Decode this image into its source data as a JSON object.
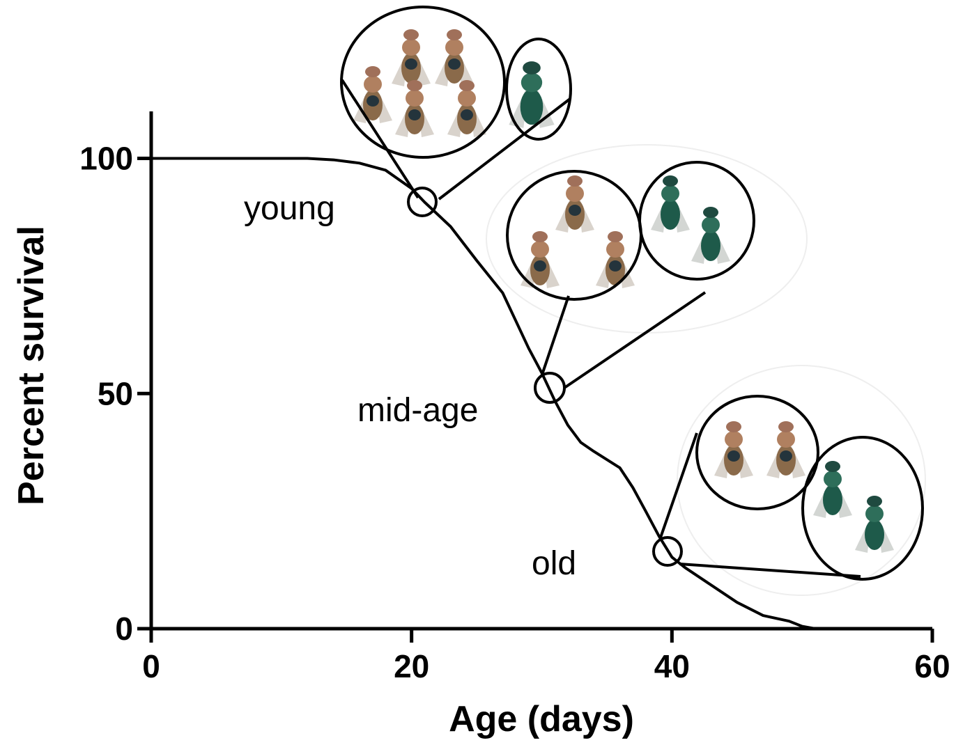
{
  "chart_data": {
    "type": "line",
    "xlabel": "Age (days)",
    "ylabel": "Percent survival",
    "x": [
      0,
      12,
      14,
      16,
      18,
      20,
      21,
      23,
      25,
      27,
      28,
      29,
      30,
      31,
      32,
      33,
      34,
      36,
      37,
      38,
      39,
      40,
      41,
      43,
      45,
      47,
      49,
      50,
      51
    ],
    "values": [
      100,
      100,
      99.7,
      99,
      97.5,
      93.6,
      90.7,
      85.5,
      78.3,
      71.4,
      65.5,
      59.6,
      54.4,
      48.5,
      43.3,
      39.6,
      37.7,
      34.2,
      30,
      24.9,
      19.7,
      15.2,
      13,
      9.3,
      5.6,
      2.8,
      1.6,
      0.5,
      0
    ],
    "color": "#000000",
    "xlim": [
      0,
      60
    ],
    "xticks": [
      0,
      20,
      40,
      60
    ],
    "ylim": [
      0,
      110
    ],
    "yticks": [
      0,
      50,
      100
    ],
    "annotations": [
      "young",
      "mid-age",
      "old"
    ]
  }
}
